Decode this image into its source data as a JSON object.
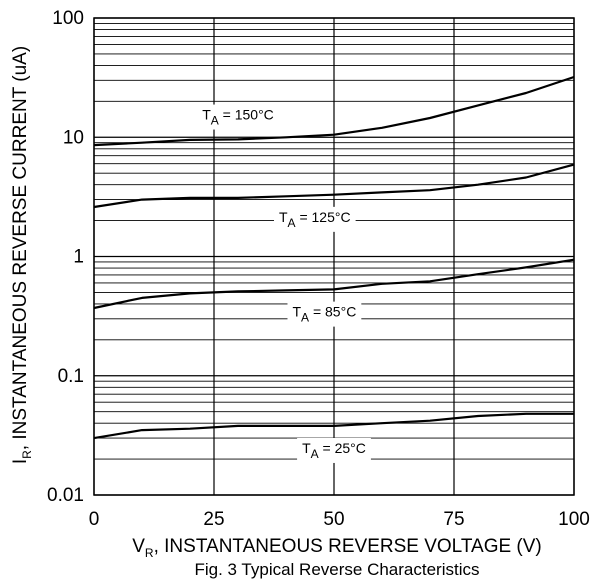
{
  "chart_data": {
    "type": "line",
    "caption": "Fig. 3 Typical Reverse Characteristics",
    "xlabel": {
      "main": "V",
      "sub": "R",
      "rest": ", INSTANTANEOUS REVERSE VOLTAGE (V)"
    },
    "ylabel": {
      "main": "I",
      "sub": "R",
      "rest": ", INSTANTANEOUS REVERSE CURRENT (uA)"
    },
    "xlim": [
      0,
      100
    ],
    "ylim": [
      0.01,
      100
    ],
    "yscale": "log",
    "grid": true,
    "x_ticks": [
      {
        "value": 0,
        "label": "0"
      },
      {
        "value": 25,
        "label": "25"
      },
      {
        "value": 50,
        "label": "50"
      },
      {
        "value": 75,
        "label": "75"
      },
      {
        "value": 100,
        "label": "100"
      }
    ],
    "y_ticks": [
      {
        "value": 100,
        "label": "100"
      },
      {
        "value": 10,
        "label": "10"
      },
      {
        "value": 1,
        "label": "1"
      },
      {
        "value": 0.1,
        "label": "0.1"
      },
      {
        "value": 0.01,
        "label": "0.01"
      }
    ],
    "x": [
      0,
      10,
      20,
      30,
      40,
      50,
      60,
      70,
      80,
      90,
      100
    ],
    "series": [
      {
        "name": "150°C",
        "label": {
          "prefix": "T",
          "sub": "A",
          "rest": " = 150°C"
        },
        "values": [
          8.6,
          9.0,
          9.5,
          9.6,
          10.0,
          10.5,
          12.0,
          14.5,
          18.5,
          23.5,
          32.0
        ]
      },
      {
        "name": "125°C",
        "label": {
          "prefix": "T",
          "sub": "A",
          "rest": " = 125°C"
        },
        "values": [
          2.6,
          3.0,
          3.1,
          3.1,
          3.2,
          3.3,
          3.45,
          3.6,
          4.0,
          4.6,
          5.9
        ]
      },
      {
        "name": "85°C",
        "label": {
          "prefix": "T",
          "sub": "A",
          "rest": " = 85°C"
        },
        "values": [
          0.37,
          0.45,
          0.49,
          0.51,
          0.52,
          0.53,
          0.59,
          0.62,
          0.71,
          0.81,
          0.94
        ]
      },
      {
        "name": "25°C",
        "label": {
          "prefix": "T",
          "sub": "A",
          "rest": " = 25°C"
        },
        "values": [
          0.03,
          0.035,
          0.036,
          0.038,
          0.038,
          0.038,
          0.04,
          0.042,
          0.046,
          0.048,
          0.048
        ]
      }
    ]
  }
}
